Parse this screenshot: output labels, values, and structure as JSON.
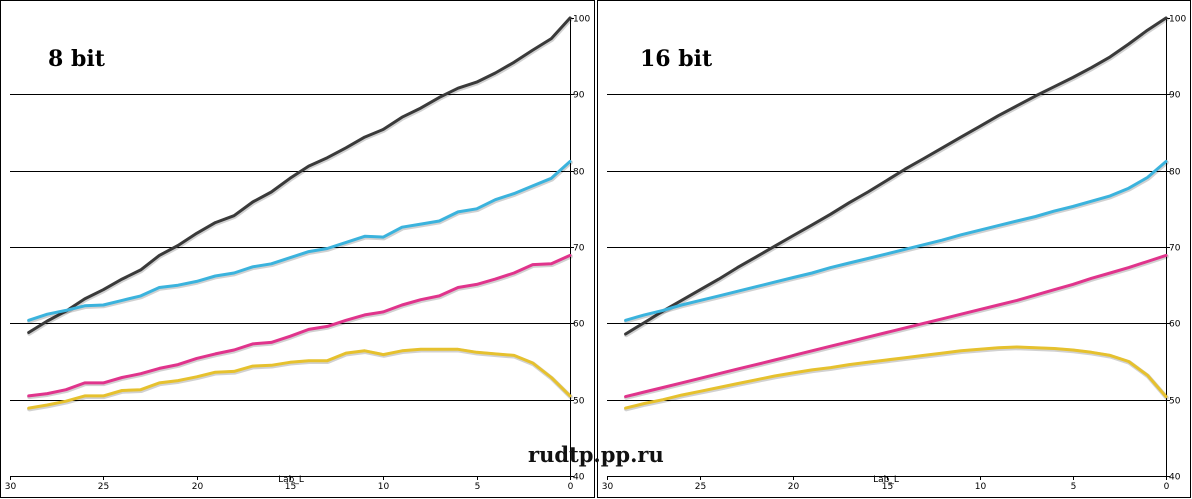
{
  "watermark": "rudtp.pp.ru",
  "chart_data": [
    {
      "type": "line",
      "title": "8 bit",
      "xlabel": "Lab_L",
      "ylabel": "",
      "xlim": [
        30,
        0
      ],
      "ylim": [
        40,
        100
      ],
      "x_ticks": [
        "30",
        "25",
        "20",
        "15",
        "10",
        "5",
        "0"
      ],
      "y_ticks": [
        "40",
        "50",
        "60",
        "70",
        "80",
        "90",
        "100"
      ],
      "grid": true,
      "series": [
        {
          "color": "#3a3a3a",
          "x": [
            29,
            28,
            27,
            26,
            25,
            24,
            23,
            22,
            21,
            20,
            19,
            18,
            17,
            16,
            15,
            14,
            13,
            12,
            11,
            10,
            9,
            8,
            7,
            6,
            5,
            4,
            3,
            2,
            1,
            0
          ],
          "y": [
            58.8,
            60.3,
            61.6,
            63.2,
            64.4,
            65.8,
            67.0,
            68.9,
            70.2,
            71.8,
            73.2,
            74.1,
            75.9,
            77.2,
            79.0,
            80.6,
            81.7,
            83.0,
            84.4,
            85.4,
            87.0,
            88.2,
            89.6,
            90.8,
            91.6,
            92.8,
            94.2,
            95.8,
            97.3,
            100.0
          ]
        },
        {
          "color": "#3bb3dd",
          "x": [
            29,
            28,
            27,
            26,
            25,
            24,
            23,
            22,
            21,
            20,
            19,
            18,
            17,
            16,
            15,
            14,
            13,
            12,
            11,
            10,
            9,
            8,
            7,
            6,
            5,
            4,
            3,
            2,
            1,
            0
          ],
          "y": [
            60.4,
            61.2,
            61.7,
            62.3,
            62.4,
            63.0,
            63.6,
            64.7,
            65.0,
            65.5,
            66.2,
            66.6,
            67.4,
            67.8,
            68.6,
            69.4,
            69.8,
            70.6,
            71.4,
            71.3,
            72.6,
            73.0,
            73.4,
            74.6,
            75.0,
            76.2,
            77.0,
            78.0,
            79.0,
            81.2
          ]
        },
        {
          "color": "#e0348c",
          "x": [
            29,
            28,
            27,
            26,
            25,
            24,
            23,
            22,
            21,
            20,
            19,
            18,
            17,
            16,
            15,
            14,
            13,
            12,
            11,
            10,
            9,
            8,
            7,
            6,
            5,
            4,
            3,
            2,
            1,
            0
          ],
          "y": [
            50.5,
            50.8,
            51.3,
            52.2,
            52.2,
            52.9,
            53.4,
            54.1,
            54.6,
            55.4,
            56.0,
            56.5,
            57.3,
            57.5,
            58.3,
            59.2,
            59.6,
            60.4,
            61.1,
            61.5,
            62.4,
            63.1,
            63.6,
            64.7,
            65.1,
            65.8,
            66.6,
            67.7,
            67.8,
            68.9
          ]
        },
        {
          "color": "#e6c12e",
          "x": [
            29,
            28,
            27,
            26,
            25,
            24,
            23,
            22,
            21,
            20,
            19,
            18,
            17,
            16,
            15,
            14,
            13,
            12,
            11,
            10,
            9,
            8,
            7,
            6,
            5,
            4,
            3,
            2,
            1,
            0
          ],
          "y": [
            48.9,
            49.3,
            49.8,
            50.5,
            50.5,
            51.2,
            51.3,
            52.2,
            52.5,
            53.0,
            53.6,
            53.7,
            54.4,
            54.5,
            54.9,
            55.1,
            55.1,
            56.1,
            56.4,
            55.9,
            56.4,
            56.6,
            56.6,
            56.6,
            56.2,
            56.0,
            55.8,
            54.8,
            52.9,
            50.5
          ]
        }
      ]
    },
    {
      "type": "line",
      "title": "16 bit",
      "xlabel": "Lab_L",
      "ylabel": "",
      "xlim": [
        30,
        0
      ],
      "ylim": [
        40,
        100
      ],
      "x_ticks": [
        "30",
        "25",
        "20",
        "15",
        "10",
        "5",
        "0"
      ],
      "y_ticks": [
        "40",
        "50",
        "60",
        "70",
        "80",
        "90",
        "100"
      ],
      "grid": true,
      "series": [
        {
          "color": "#3a3a3a",
          "x": [
            29,
            28,
            27,
            26,
            25,
            24,
            23,
            22,
            21,
            20,
            19,
            18,
            17,
            16,
            15,
            14,
            13,
            12,
            11,
            10,
            9,
            8,
            7,
            6,
            5,
            4,
            3,
            2,
            1,
            0
          ],
          "y": [
            58.6,
            60.1,
            61.6,
            63.0,
            64.4,
            65.8,
            67.3,
            68.7,
            70.1,
            71.5,
            72.9,
            74.3,
            75.8,
            77.2,
            78.7,
            80.2,
            81.6,
            83.0,
            84.4,
            85.8,
            87.2,
            88.5,
            89.8,
            91.0,
            92.2,
            93.5,
            94.9,
            96.6,
            98.4,
            100.0
          ]
        },
        {
          "color": "#3bb3dd",
          "x": [
            29,
            28,
            27,
            26,
            25,
            24,
            23,
            22,
            21,
            20,
            19,
            18,
            17,
            16,
            15,
            14,
            13,
            12,
            11,
            10,
            9,
            8,
            7,
            6,
            5,
            4,
            3,
            2,
            1,
            0
          ],
          "y": [
            60.4,
            61.1,
            61.7,
            62.4,
            63.0,
            63.6,
            64.2,
            64.8,
            65.4,
            66.0,
            66.6,
            67.3,
            67.9,
            68.5,
            69.1,
            69.7,
            70.3,
            70.9,
            71.6,
            72.2,
            72.8,
            73.4,
            74.0,
            74.7,
            75.3,
            76.0,
            76.7,
            77.7,
            79.1,
            81.2
          ]
        },
        {
          "color": "#e0348c",
          "x": [
            29,
            28,
            27,
            26,
            25,
            24,
            23,
            22,
            21,
            20,
            19,
            18,
            17,
            16,
            15,
            14,
            13,
            12,
            11,
            10,
            9,
            8,
            7,
            6,
            5,
            4,
            3,
            2,
            1,
            0
          ],
          "y": [
            50.4,
            51.0,
            51.6,
            52.2,
            52.8,
            53.4,
            54.0,
            54.6,
            55.2,
            55.8,
            56.4,
            57.0,
            57.6,
            58.2,
            58.8,
            59.4,
            60.0,
            60.6,
            61.2,
            61.8,
            62.4,
            63.0,
            63.7,
            64.4,
            65.1,
            65.9,
            66.6,
            67.3,
            68.1,
            68.9
          ]
        },
        {
          "color": "#e6c12e",
          "x": [
            29,
            28,
            27,
            26,
            25,
            24,
            23,
            22,
            21,
            20,
            19,
            18,
            17,
            16,
            15,
            14,
            13,
            12,
            11,
            10,
            9,
            8,
            7,
            6,
            5,
            4,
            3,
            2,
            1,
            0
          ],
          "y": [
            48.9,
            49.5,
            50.0,
            50.6,
            51.1,
            51.6,
            52.1,
            52.6,
            53.1,
            53.5,
            53.9,
            54.2,
            54.6,
            54.9,
            55.2,
            55.5,
            55.8,
            56.1,
            56.4,
            56.6,
            56.8,
            56.9,
            56.8,
            56.7,
            56.5,
            56.2,
            55.8,
            55.0,
            53.2,
            50.4
          ]
        }
      ]
    }
  ]
}
